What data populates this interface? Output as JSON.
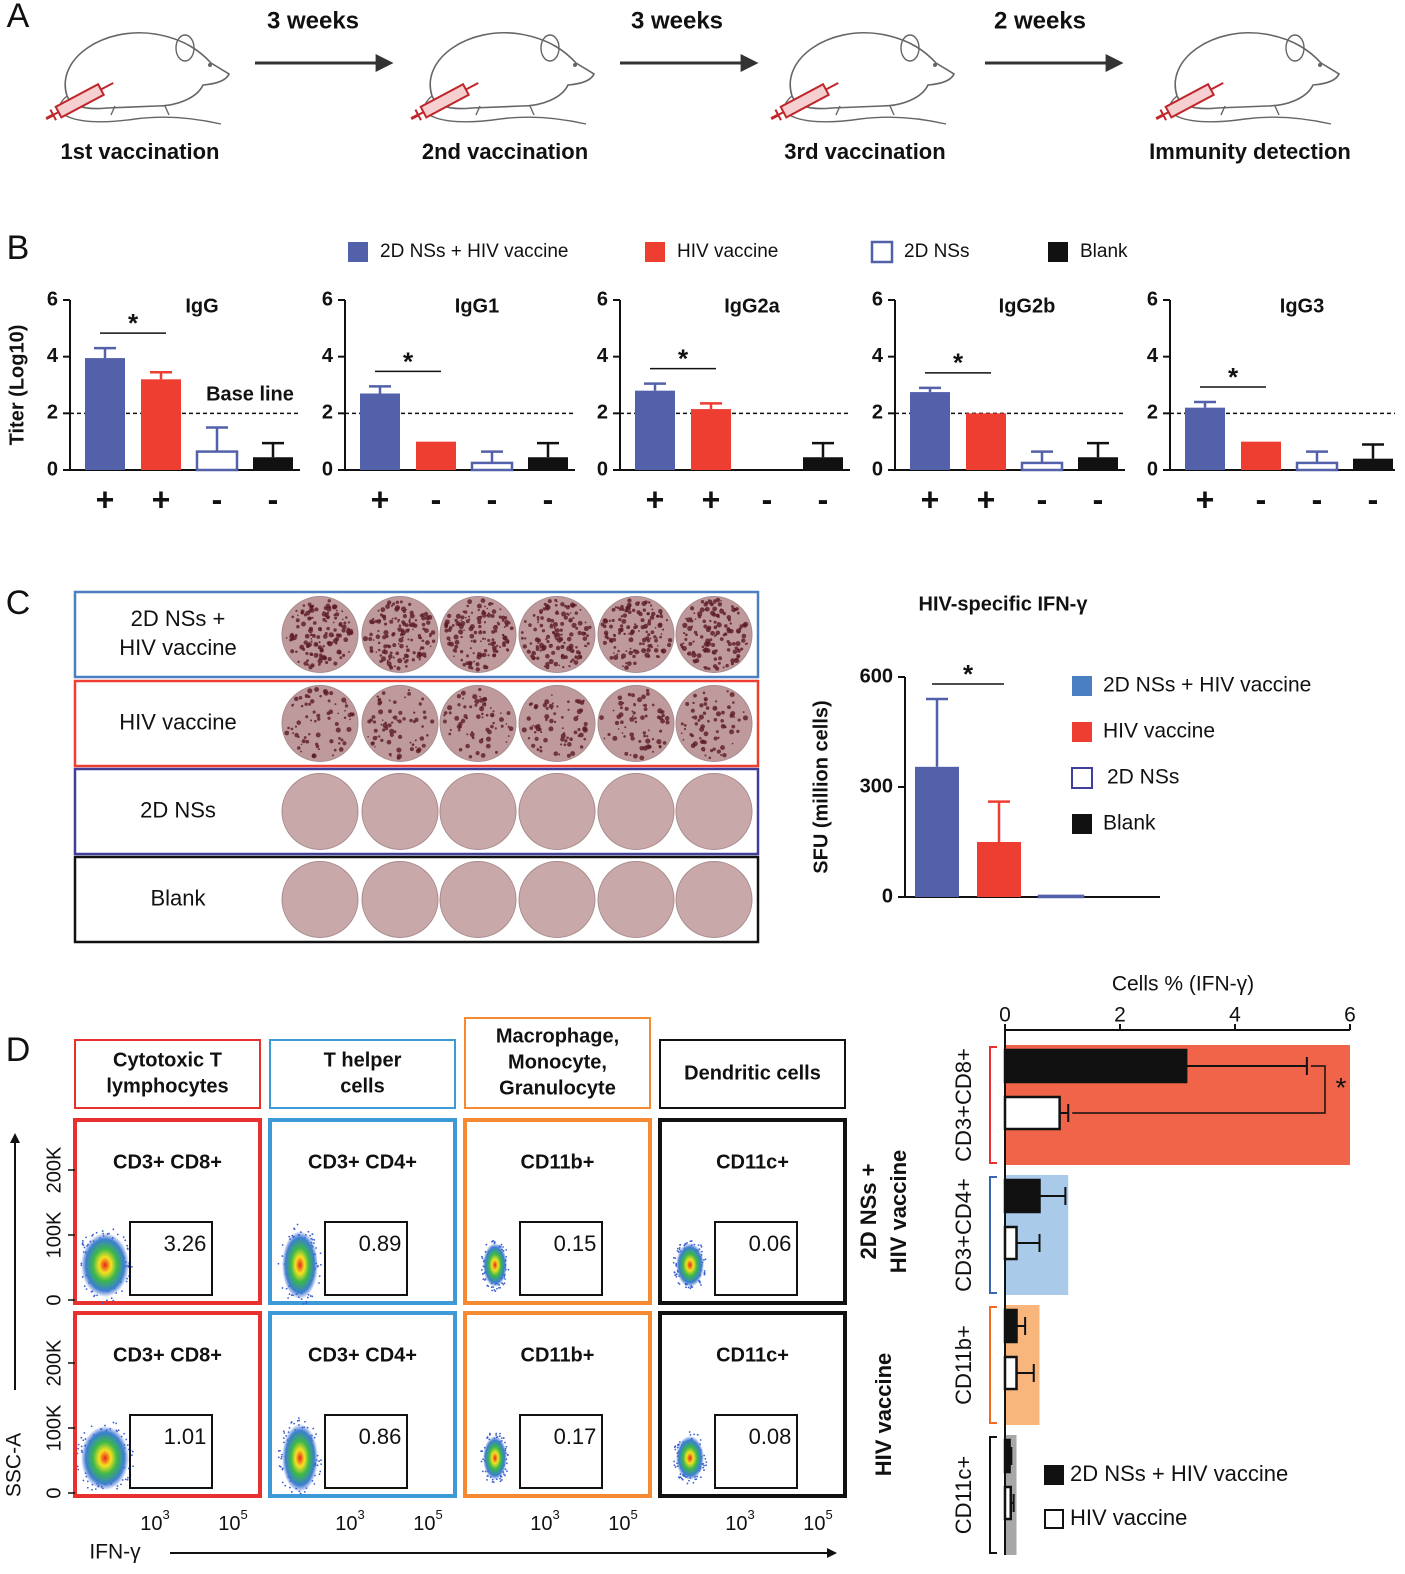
{
  "panel_labels": [
    "A",
    "B",
    "C",
    "D"
  ],
  "timeline": {
    "steps": [
      "1st vaccination",
      "2nd vaccination",
      "3rd vaccination",
      "Immunity detection"
    ],
    "intervals": [
      "3 weeks",
      "3 weeks",
      "2 weeks"
    ]
  },
  "legend_b": [
    {
      "name": "2D NSs + HIV vaccine",
      "color": "#5361ab",
      "hollow": false
    },
    {
      "name": "HIV vaccine",
      "color": "#ee3e32",
      "hollow": false
    },
    {
      "name": "2D NSs",
      "color": "#5361ab",
      "hollow": true
    },
    {
      "name": "Blank",
      "color": "#111111",
      "hollow": false
    }
  ],
  "chart_data": [
    {
      "type": "bar",
      "title": "IgG",
      "ylabel": "Titer (Log10)",
      "categories": [
        "+",
        "+",
        "-",
        "-"
      ],
      "values": [
        3.95,
        3.2,
        0.65,
        0.45
      ],
      "errors": [
        0.35,
        0.25,
        0.85,
        0.5
      ],
      "colors": [
        "#5361ab",
        "#ee3e32",
        "#5361ab",
        "#111111"
      ],
      "hollow": [
        false,
        false,
        true,
        false
      ],
      "ylim": [
        0,
        6
      ],
      "yticks": [
        0,
        2,
        4,
        6
      ],
      "baseline": 2,
      "baseline_label": "Base line",
      "significance": "*"
    },
    {
      "type": "bar",
      "title": "IgG1",
      "categories": [
        "+",
        "-",
        "-",
        "-"
      ],
      "values": [
        2.7,
        1.0,
        0.25,
        0.45
      ],
      "errors": [
        0.25,
        null,
        0.4,
        0.5
      ],
      "colors": [
        "#5361ab",
        "#ee3e32",
        "#5361ab",
        "#111111"
      ],
      "hollow": [
        false,
        false,
        true,
        false
      ],
      "ylim": [
        0,
        6
      ],
      "yticks": [
        0,
        2,
        4,
        6
      ],
      "baseline": 2,
      "significance": "*"
    },
    {
      "type": "bar",
      "title": "IgG2a",
      "categories": [
        "+",
        "+",
        "-",
        "-"
      ],
      "values": [
        2.8,
        2.15,
        0,
        0.45
      ],
      "errors": [
        0.25,
        0.2,
        null,
        0.5
      ],
      "colors": [
        "#5361ab",
        "#ee3e32",
        "#5361ab",
        "#111111"
      ],
      "hollow": [
        false,
        false,
        true,
        false
      ],
      "ylim": [
        0,
        6
      ],
      "yticks": [
        0,
        2,
        4,
        6
      ],
      "baseline": 2,
      "significance": "*"
    },
    {
      "type": "bar",
      "title": "IgG2b",
      "categories": [
        "+",
        "+",
        "-",
        "-"
      ],
      "values": [
        2.75,
        2.0,
        0.25,
        0.45
      ],
      "errors": [
        0.15,
        null,
        0.4,
        0.5
      ],
      "colors": [
        "#5361ab",
        "#ee3e32",
        "#5361ab",
        "#111111"
      ],
      "hollow": [
        false,
        false,
        true,
        false
      ],
      "ylim": [
        0,
        6
      ],
      "yticks": [
        0,
        2,
        4,
        6
      ],
      "baseline": 2,
      "significance": "*"
    },
    {
      "type": "bar",
      "title": "IgG3",
      "categories": [
        "+",
        "-",
        "-",
        "-"
      ],
      "values": [
        2.2,
        1.0,
        0.25,
        0.4
      ],
      "errors": [
        0.2,
        null,
        0.4,
        0.5
      ],
      "colors": [
        "#5361ab",
        "#ee3e32",
        "#5361ab",
        "#111111"
      ],
      "hollow": [
        false,
        false,
        true,
        false
      ],
      "ylim": [
        0,
        6
      ],
      "yticks": [
        0,
        2,
        4,
        6
      ],
      "baseline": 2,
      "significance": "*"
    },
    {
      "type": "bar",
      "title": "HIV-specific IFN-γ",
      "ylabel": "SFU (million cells)",
      "values": [
        355,
        150,
        3,
        2
      ],
      "errors": [
        185,
        110,
        null,
        null
      ],
      "colors": [
        "#5361ab",
        "#ee3e32",
        "#5361ab",
        "#111111"
      ],
      "hollow": [
        false,
        false,
        true,
        false
      ],
      "ylim": [
        0,
        600
      ],
      "yticks": [
        0,
        300,
        600
      ],
      "significance": "*",
      "legend": [
        {
          "name": "2D NSs + HIV vaccine",
          "color": "#4a7fc1",
          "hollow": false
        },
        {
          "name": "HIV vaccine",
          "color": "#ee3e32",
          "hollow": false
        },
        {
          "name": "2D NSs",
          "color": "#3f3f9a",
          "hollow": true
        },
        {
          "name": "Blank",
          "color": "#111111",
          "hollow": false
        }
      ]
    },
    {
      "type": "hbar",
      "title": "Cells % (IFN-γ)",
      "categories": [
        "CD3+CD8+",
        "CD3+CD4+",
        "CD11b+",
        "CD11c+"
      ],
      "category_colors": [
        "#e8312f",
        "#3a66b0",
        "#f26b22",
        "#111111"
      ],
      "band_colors": [
        "#f0644a",
        "#a9cbe9",
        "#f9b67c",
        "#a7a7a7"
      ],
      "band_values": [
        6,
        1.1,
        0.6,
        0.2
      ],
      "xlim": [
        0,
        6
      ],
      "xticks": [
        0,
        2,
        4,
        6
      ],
      "series": [
        {
          "name": "2D NSs + HIV vaccine",
          "color": "#111111",
          "values": [
            3.15,
            0.6,
            0.2,
            0.08
          ],
          "errors": [
            2.1,
            0.45,
            0.15,
            0.03
          ]
        },
        {
          "name": "HIV vaccine",
          "color": "#ffffff",
          "values": [
            0.95,
            0.2,
            0.2,
            0.1
          ],
          "errors": [
            0.15,
            0.4,
            0.3,
            0.05
          ]
        }
      ],
      "significance": "*"
    }
  ],
  "plates": {
    "rows": [
      {
        "label": [
          "2D NSs +",
          "HIV vaccine"
        ],
        "color": "#4a7fc1",
        "staining": "heavy"
      },
      {
        "label": [
          "HIV vaccine"
        ],
        "color": "#ee3e32",
        "staining": "moderate"
      },
      {
        "label": [
          "2D NSs"
        ],
        "color": "#3f3f9a",
        "staining": "none"
      },
      {
        "label": [
          "Blank"
        ],
        "color": "#111111",
        "staining": "none"
      }
    ]
  },
  "flow": {
    "headers": [
      {
        "lines": [
          "Cytotoxic T",
          "lymphocytes"
        ],
        "color": "#e8312f"
      },
      {
        "lines": [
          "T helper",
          "cells"
        ],
        "color": "#3d9ad6"
      },
      {
        "lines": [
          "Macrophage,",
          "Monocyte,",
          "Granulocyte"
        ],
        "color": "#f58a32"
      },
      {
        "lines": [
          "Dendritic cells"
        ],
        "color": "#111111"
      }
    ],
    "gates": [
      {
        "label": "CD3+ CD8+",
        "color": "#e8312f"
      },
      {
        "label": "CD3+ CD4+",
        "color": "#3a66b0"
      },
      {
        "label": "CD11b+",
        "color": "#f26b22"
      },
      {
        "label": "CD11c+",
        "color": "#111111"
      }
    ],
    "rows": [
      {
        "label": [
          "2D NSs +",
          "HIV vaccine"
        ],
        "values": [
          3.26,
          0.89,
          0.15,
          0.06
        ]
      },
      {
        "label": [
          "HIV vaccine"
        ],
        "values": [
          1.01,
          0.86,
          0.17,
          0.08
        ]
      }
    ],
    "ylabel": "SSC-A",
    "xlabel": "IFN-γ",
    "yticks": [
      "0",
      "100K",
      "200K"
    ],
    "xticks": [
      {
        "base": "10",
        "exp": "3"
      },
      {
        "base": "10",
        "exp": "5"
      }
    ]
  }
}
